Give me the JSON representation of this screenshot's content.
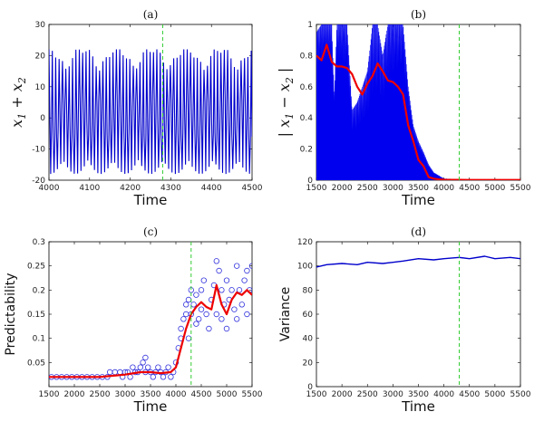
{
  "figure": {
    "panels": [
      "a",
      "b",
      "c",
      "d"
    ]
  },
  "chart_data": [
    {
      "id": "a",
      "type": "line",
      "title": "(a)",
      "xlabel": "Time",
      "ylabel": "x_1 + x_2",
      "ylabel_parts": [
        "x",
        "1",
        " + x",
        "2"
      ],
      "xlim": [
        4000,
        4500
      ],
      "ylim": [
        -20,
        30
      ],
      "xticks": [
        4000,
        4100,
        4200,
        4300,
        4400,
        4500
      ],
      "yticks": [
        -20,
        -10,
        0,
        10,
        20,
        30
      ],
      "series": [
        {
          "name": "x1+x2",
          "color": "#0000cc",
          "style": "oscillation",
          "period": 8.3,
          "max_amplitude": 22,
          "min_amplitude": -18,
          "x_range": [
            4000,
            4500
          ]
        }
      ],
      "vline": {
        "x": 4280,
        "color": "#33cc33",
        "style": "dashed"
      }
    },
    {
      "id": "b",
      "type": "line",
      "title": "(b)",
      "xlabel": "Time",
      "ylabel": "|x_1 - x_2|",
      "ylabel_parts": [
        "x",
        "1",
        " − x",
        "2"
      ],
      "xlim": [
        1500,
        5500
      ],
      "ylim": [
        0,
        1
      ],
      "xticks": [
        1500,
        2000,
        2500,
        3000,
        3500,
        4000,
        4500,
        5000,
        5500
      ],
      "yticks": [
        0,
        0.2,
        0.4,
        0.6,
        0.8,
        1
      ],
      "yticklabels": [
        "0",
        "0.2",
        "0.4",
        "0.6",
        "0.8",
        "1"
      ],
      "series": [
        {
          "name": "envelope",
          "color": "#0000ee",
          "style": "filled-envelope",
          "x": [
            1500,
            1600,
            1700,
            1800,
            1850,
            1900,
            2000,
            2100,
            2200,
            2300,
            2400,
            2500,
            2600,
            2700,
            2800,
            2900,
            3000,
            3050,
            3100,
            3200,
            3300,
            3400,
            3500,
            3600,
            3700,
            3800,
            4000,
            4300,
            5000,
            5500
          ],
          "y": [
            0.95,
            1.0,
            1.0,
            1.0,
            0.55,
            1.0,
            1.0,
            1.0,
            0.45,
            0.5,
            0.6,
            0.7,
            1.0,
            1.0,
            0.8,
            1.0,
            1.0,
            1.0,
            1.0,
            1.0,
            0.6,
            0.35,
            0.25,
            0.18,
            0.1,
            0.05,
            0.01,
            0.005,
            0.003,
            0.002
          ]
        },
        {
          "name": "smoothed",
          "color": "#ee0000",
          "style": "line",
          "x": [
            1500,
            1600,
            1700,
            1800,
            1900,
            2000,
            2100,
            2200,
            2300,
            2400,
            2500,
            2600,
            2700,
            2800,
            2900,
            3000,
            3100,
            3200,
            3300,
            3400,
            3500,
            3600,
            3700,
            3800,
            3900,
            4000,
            4500,
            5000,
            5500
          ],
          "y": [
            0.8,
            0.77,
            0.87,
            0.76,
            0.73,
            0.73,
            0.72,
            0.68,
            0.6,
            0.55,
            0.62,
            0.67,
            0.75,
            0.7,
            0.64,
            0.63,
            0.6,
            0.55,
            0.35,
            0.25,
            0.13,
            0.09,
            0.02,
            0.01,
            0.005,
            0.003,
            0.002,
            0.002,
            0.002
          ]
        }
      ],
      "vline": {
        "x": 4300,
        "color": "#33cc33",
        "style": "dashed"
      }
    },
    {
      "id": "c",
      "type": "scatter",
      "title": "(c)",
      "xlabel": "Time",
      "ylabel": "Predictability",
      "xlim": [
        1500,
        5500
      ],
      "ylim": [
        0,
        0.3
      ],
      "xticks": [
        1500,
        2000,
        2500,
        3000,
        3500,
        4000,
        4500,
        5000,
        5500
      ],
      "yticks": [
        0.05,
        0.1,
        0.15,
        0.2,
        0.25,
        0.3
      ],
      "yticklabels": [
        "0.05",
        "0.1",
        "0.15",
        "0.2",
        "0.25",
        "0.3"
      ],
      "series": [
        {
          "name": "samples",
          "color": "#3333dd",
          "marker": "circle",
          "x": [
            1550,
            1650,
            1750,
            1850,
            1950,
            2050,
            2150,
            2250,
            2350,
            2450,
            2550,
            2650,
            2700,
            2800,
            2900,
            2950,
            3000,
            3050,
            3100,
            3150,
            3200,
            3250,
            3300,
            3350,
            3400,
            3400,
            3450,
            3500,
            3550,
            3600,
            3650,
            3700,
            3750,
            3800,
            3850,
            3900,
            3950,
            4000,
            4050,
            4100,
            4100,
            4150,
            4200,
            4200,
            4250,
            4250,
            4300,
            4300,
            4350,
            4400,
            4400,
            4450,
            4500,
            4500,
            4550,
            4600,
            4650,
            4700,
            4750,
            4800,
            4800,
            4850,
            4900,
            4900,
            4950,
            5000,
            5000,
            5050,
            5100,
            5150,
            5200,
            5200,
            5250,
            5300,
            5350,
            5400,
            5400,
            5450,
            5500
          ],
          "y": [
            0.02,
            0.02,
            0.02,
            0.02,
            0.02,
            0.02,
            0.02,
            0.02,
            0.02,
            0.02,
            0.02,
            0.02,
            0.03,
            0.03,
            0.03,
            0.02,
            0.03,
            0.03,
            0.02,
            0.04,
            0.03,
            0.03,
            0.04,
            0.05,
            0.06,
            0.03,
            0.04,
            0.03,
            0.02,
            0.03,
            0.04,
            0.03,
            0.02,
            0.03,
            0.04,
            0.02,
            0.03,
            0.05,
            0.08,
            0.1,
            0.12,
            0.14,
            0.15,
            0.17,
            0.1,
            0.18,
            0.15,
            0.2,
            0.17,
            0.13,
            0.19,
            0.14,
            0.16,
            0.2,
            0.22,
            0.15,
            0.12,
            0.18,
            0.21,
            0.26,
            0.15,
            0.24,
            0.2,
            0.14,
            0.17,
            0.22,
            0.12,
            0.18,
            0.2,
            0.16,
            0.25,
            0.14,
            0.2,
            0.17,
            0.22,
            0.24,
            0.15,
            0.2,
            0.25
          ]
        },
        {
          "name": "smoothed",
          "color": "#ee0000",
          "style": "line",
          "x": [
            1500,
            2000,
            2500,
            3000,
            3300,
            3500,
            3700,
            3900,
            4000,
            4100,
            4200,
            4300,
            4400,
            4500,
            4600,
            4700,
            4800,
            4900,
            5000,
            5100,
            5200,
            5300,
            5400,
            5500
          ],
          "y": [
            0.02,
            0.02,
            0.02,
            0.025,
            0.03,
            0.03,
            0.028,
            0.03,
            0.04,
            0.08,
            0.12,
            0.15,
            0.165,
            0.175,
            0.165,
            0.16,
            0.21,
            0.17,
            0.15,
            0.18,
            0.195,
            0.19,
            0.2,
            0.19
          ]
        }
      ],
      "vline": {
        "x": 4300,
        "color": "#33cc33",
        "style": "dashed"
      }
    },
    {
      "id": "d",
      "type": "line",
      "title": "(d)",
      "xlabel": "Time",
      "ylabel": "Variance",
      "xlim": [
        1500,
        5500
      ],
      "ylim": [
        0,
        120
      ],
      "xticks": [
        1500,
        2000,
        2500,
        3000,
        3500,
        4000,
        4500,
        5000,
        5500
      ],
      "yticks": [
        0,
        20,
        40,
        60,
        80,
        100,
        120
      ],
      "series": [
        {
          "name": "variance",
          "color": "#0000cc",
          "style": "line",
          "x": [
            1500,
            1700,
            2000,
            2300,
            2500,
            2800,
            3000,
            3200,
            3500,
            3800,
            4000,
            4300,
            4500,
            4800,
            5000,
            5300,
            5500
          ],
          "y": [
            99,
            101,
            102,
            101,
            103,
            102,
            103,
            104,
            106,
            105,
            106,
            107,
            106,
            108,
            106,
            107,
            106
          ]
        }
      ],
      "vline": {
        "x": 4300,
        "color": "#33cc33",
        "style": "dashed"
      }
    }
  ]
}
